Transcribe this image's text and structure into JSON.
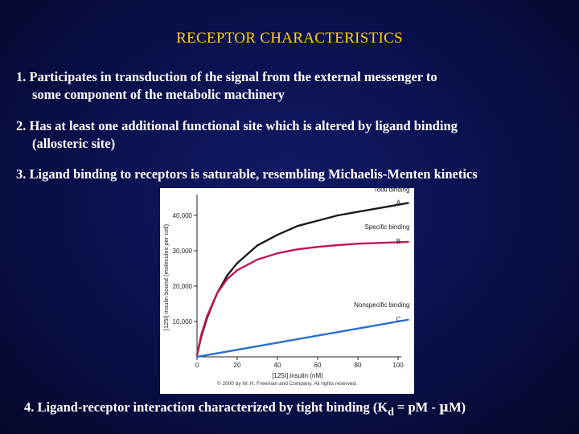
{
  "slide": {
    "title": "RECEPTOR CHARACTERISTICS",
    "points": [
      {
        "line1": "1. Participates in transduction of the signal from the external messenger to",
        "line2": "some component of the metabolic machinery"
      },
      {
        "line1": "2. Has at least one additional functional site which is altered by ligand binding",
        "line2": "(allosteric site)"
      },
      {
        "line1": "3. Ligand binding to receptors is saturable, resembling Michaelis-Menten kinetics"
      }
    ],
    "point4": {
      "prefix": "4. Ligand-receptor interaction characterized by tight binding (K",
      "subscript": "d",
      "suffix": " = pM - ",
      "mu": "µ",
      "end": "M)"
    }
  },
  "figure": {
    "copyright": "© 2000 by W. H. Freeman and Company. All rights reserved."
  },
  "chart_data": {
    "type": "line",
    "xlabel": "[125I] insulin (nM)",
    "ylabel": "[125I] insulin bound (molecules per cell)",
    "xlim": [
      0,
      100
    ],
    "ylim": [
      0,
      45000
    ],
    "xticks": [
      0,
      20,
      40,
      60,
      80,
      100
    ],
    "yticks": [
      10000,
      20000,
      30000,
      40000
    ],
    "xtick_labels": [
      "0",
      "20",
      "40",
      "60",
      "80",
      "100"
    ],
    "ytick_labels": [
      "10,000",
      "20,000",
      "30,000",
      "40,000"
    ],
    "x": [
      0,
      2,
      5,
      10,
      15,
      20,
      30,
      40,
      50,
      60,
      70,
      80,
      90,
      100,
      105
    ],
    "series": [
      {
        "name": "Total binding",
        "letter": "A",
        "color": "#1a1a1a",
        "values": [
          500,
          5500,
          11000,
          18000,
          23000,
          26500,
          31500,
          34500,
          37000,
          38500,
          40000,
          41000,
          42000,
          43000,
          43500
        ]
      },
      {
        "name": "Specific binding",
        "letter": "B",
        "color": "#c0185a",
        "values": [
          500,
          6000,
          11500,
          18000,
          22000,
          24500,
          27500,
          29300,
          30400,
          31100,
          31600,
          32000,
          32200,
          32400,
          32500
        ]
      },
      {
        "name": "Nonspecific binding",
        "letter": "C",
        "color": "#2a6fd1",
        "values": [
          0,
          200,
          500,
          1000,
          1500,
          2000,
          3000,
          4000,
          5000,
          6000,
          7000,
          8000,
          9000,
          10000,
          10500
        ]
      }
    ]
  }
}
